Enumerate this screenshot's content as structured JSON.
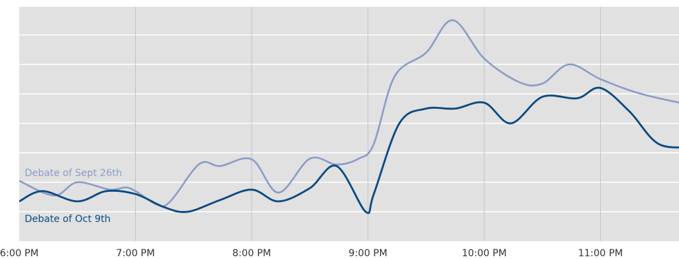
{
  "chart_data": {
    "type": "line",
    "title": "",
    "xlabel": "",
    "ylabel": "",
    "x_tick_labels": [
      "6:00 PM",
      "7:00 PM",
      "8:00 PM",
      "9:00 PM",
      "10:00 PM",
      "11:00 PM"
    ],
    "x_tick_hours": [
      0,
      1,
      2,
      3,
      4,
      5
    ],
    "xlim": [
      0,
      5.8
    ],
    "ylim": [
      0,
      7.6
    ],
    "horizontal_grid_count": 7,
    "grid": true,
    "background": "#e1e1e1",
    "series": [
      {
        "name": "Debate of Sept 26th",
        "color": "#8b9cc8",
        "x": [
          0,
          0.3,
          0.5,
          0.78,
          0.95,
          1.18,
          1.3,
          1.55,
          1.73,
          2.0,
          2.23,
          2.5,
          2.73,
          2.92,
          3.05,
          3.23,
          3.5,
          3.73,
          4.0,
          4.3,
          4.5,
          4.73,
          5.0,
          5.35,
          5.8
        ],
        "values": [
          1.05,
          0.55,
          1.0,
          0.75,
          0.8,
          0.25,
          0.35,
          1.62,
          1.55,
          1.78,
          0.65,
          1.8,
          1.6,
          1.8,
          2.3,
          4.6,
          5.4,
          6.5,
          5.2,
          4.4,
          4.35,
          5.0,
          4.5,
          4.0,
          3.6
        ]
      },
      {
        "name": "Debate of Oct 9th",
        "color": "#0b4a80",
        "x": [
          0,
          0.2,
          0.5,
          0.75,
          1.0,
          1.25,
          1.45,
          1.73,
          2.0,
          2.23,
          2.5,
          2.73,
          2.98,
          3.05,
          3.27,
          3.5,
          3.75,
          4.0,
          4.23,
          4.5,
          4.8,
          5.0,
          5.25,
          5.5,
          5.8
        ],
        "values": [
          0.35,
          0.7,
          0.35,
          0.7,
          0.6,
          0.15,
          0.0,
          0.4,
          0.75,
          0.35,
          0.8,
          1.55,
          0.0,
          0.6,
          3.0,
          3.5,
          3.5,
          3.7,
          3.0,
          3.9,
          3.85,
          4.2,
          3.4,
          2.3,
          2.2
        ]
      }
    ]
  }
}
